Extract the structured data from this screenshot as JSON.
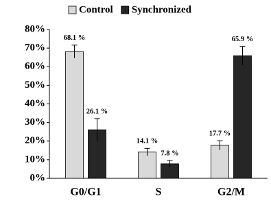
{
  "chart_data": {
    "type": "bar",
    "categories": [
      "G0/G1",
      "S",
      "G2/M"
    ],
    "series": [
      {
        "name": "Control",
        "color": "#d9d9d9",
        "values": [
          68.1,
          14.1,
          17.7
        ],
        "errors": [
          3.5,
          2.0,
          2.5
        ],
        "value_labels": [
          "68.1 %",
          "14.1 %",
          "17.7 %"
        ]
      },
      {
        "name": "Synchronized",
        "color": "#262626",
        "values": [
          26.1,
          7.8,
          65.9
        ],
        "errors": [
          6.0,
          1.8,
          5.0
        ],
        "value_labels": [
          "26.1 %",
          "7.8 %",
          "65.9 %"
        ]
      }
    ],
    "ylim": [
      0,
      80
    ],
    "yticks": [
      {
        "value": 0,
        "label": "0%"
      },
      {
        "value": 10,
        "label": "10%"
      },
      {
        "value": 20,
        "label": "20%"
      },
      {
        "value": 30,
        "label": "30%"
      },
      {
        "value": 40,
        "label": "40%"
      },
      {
        "value": 50,
        "label": "50%"
      },
      {
        "value": 60,
        "label": "60%"
      },
      {
        "value": 70,
        "label": "70%"
      },
      {
        "value": 80,
        "label": "80%"
      }
    ],
    "legend": "top",
    "grid": false
  }
}
